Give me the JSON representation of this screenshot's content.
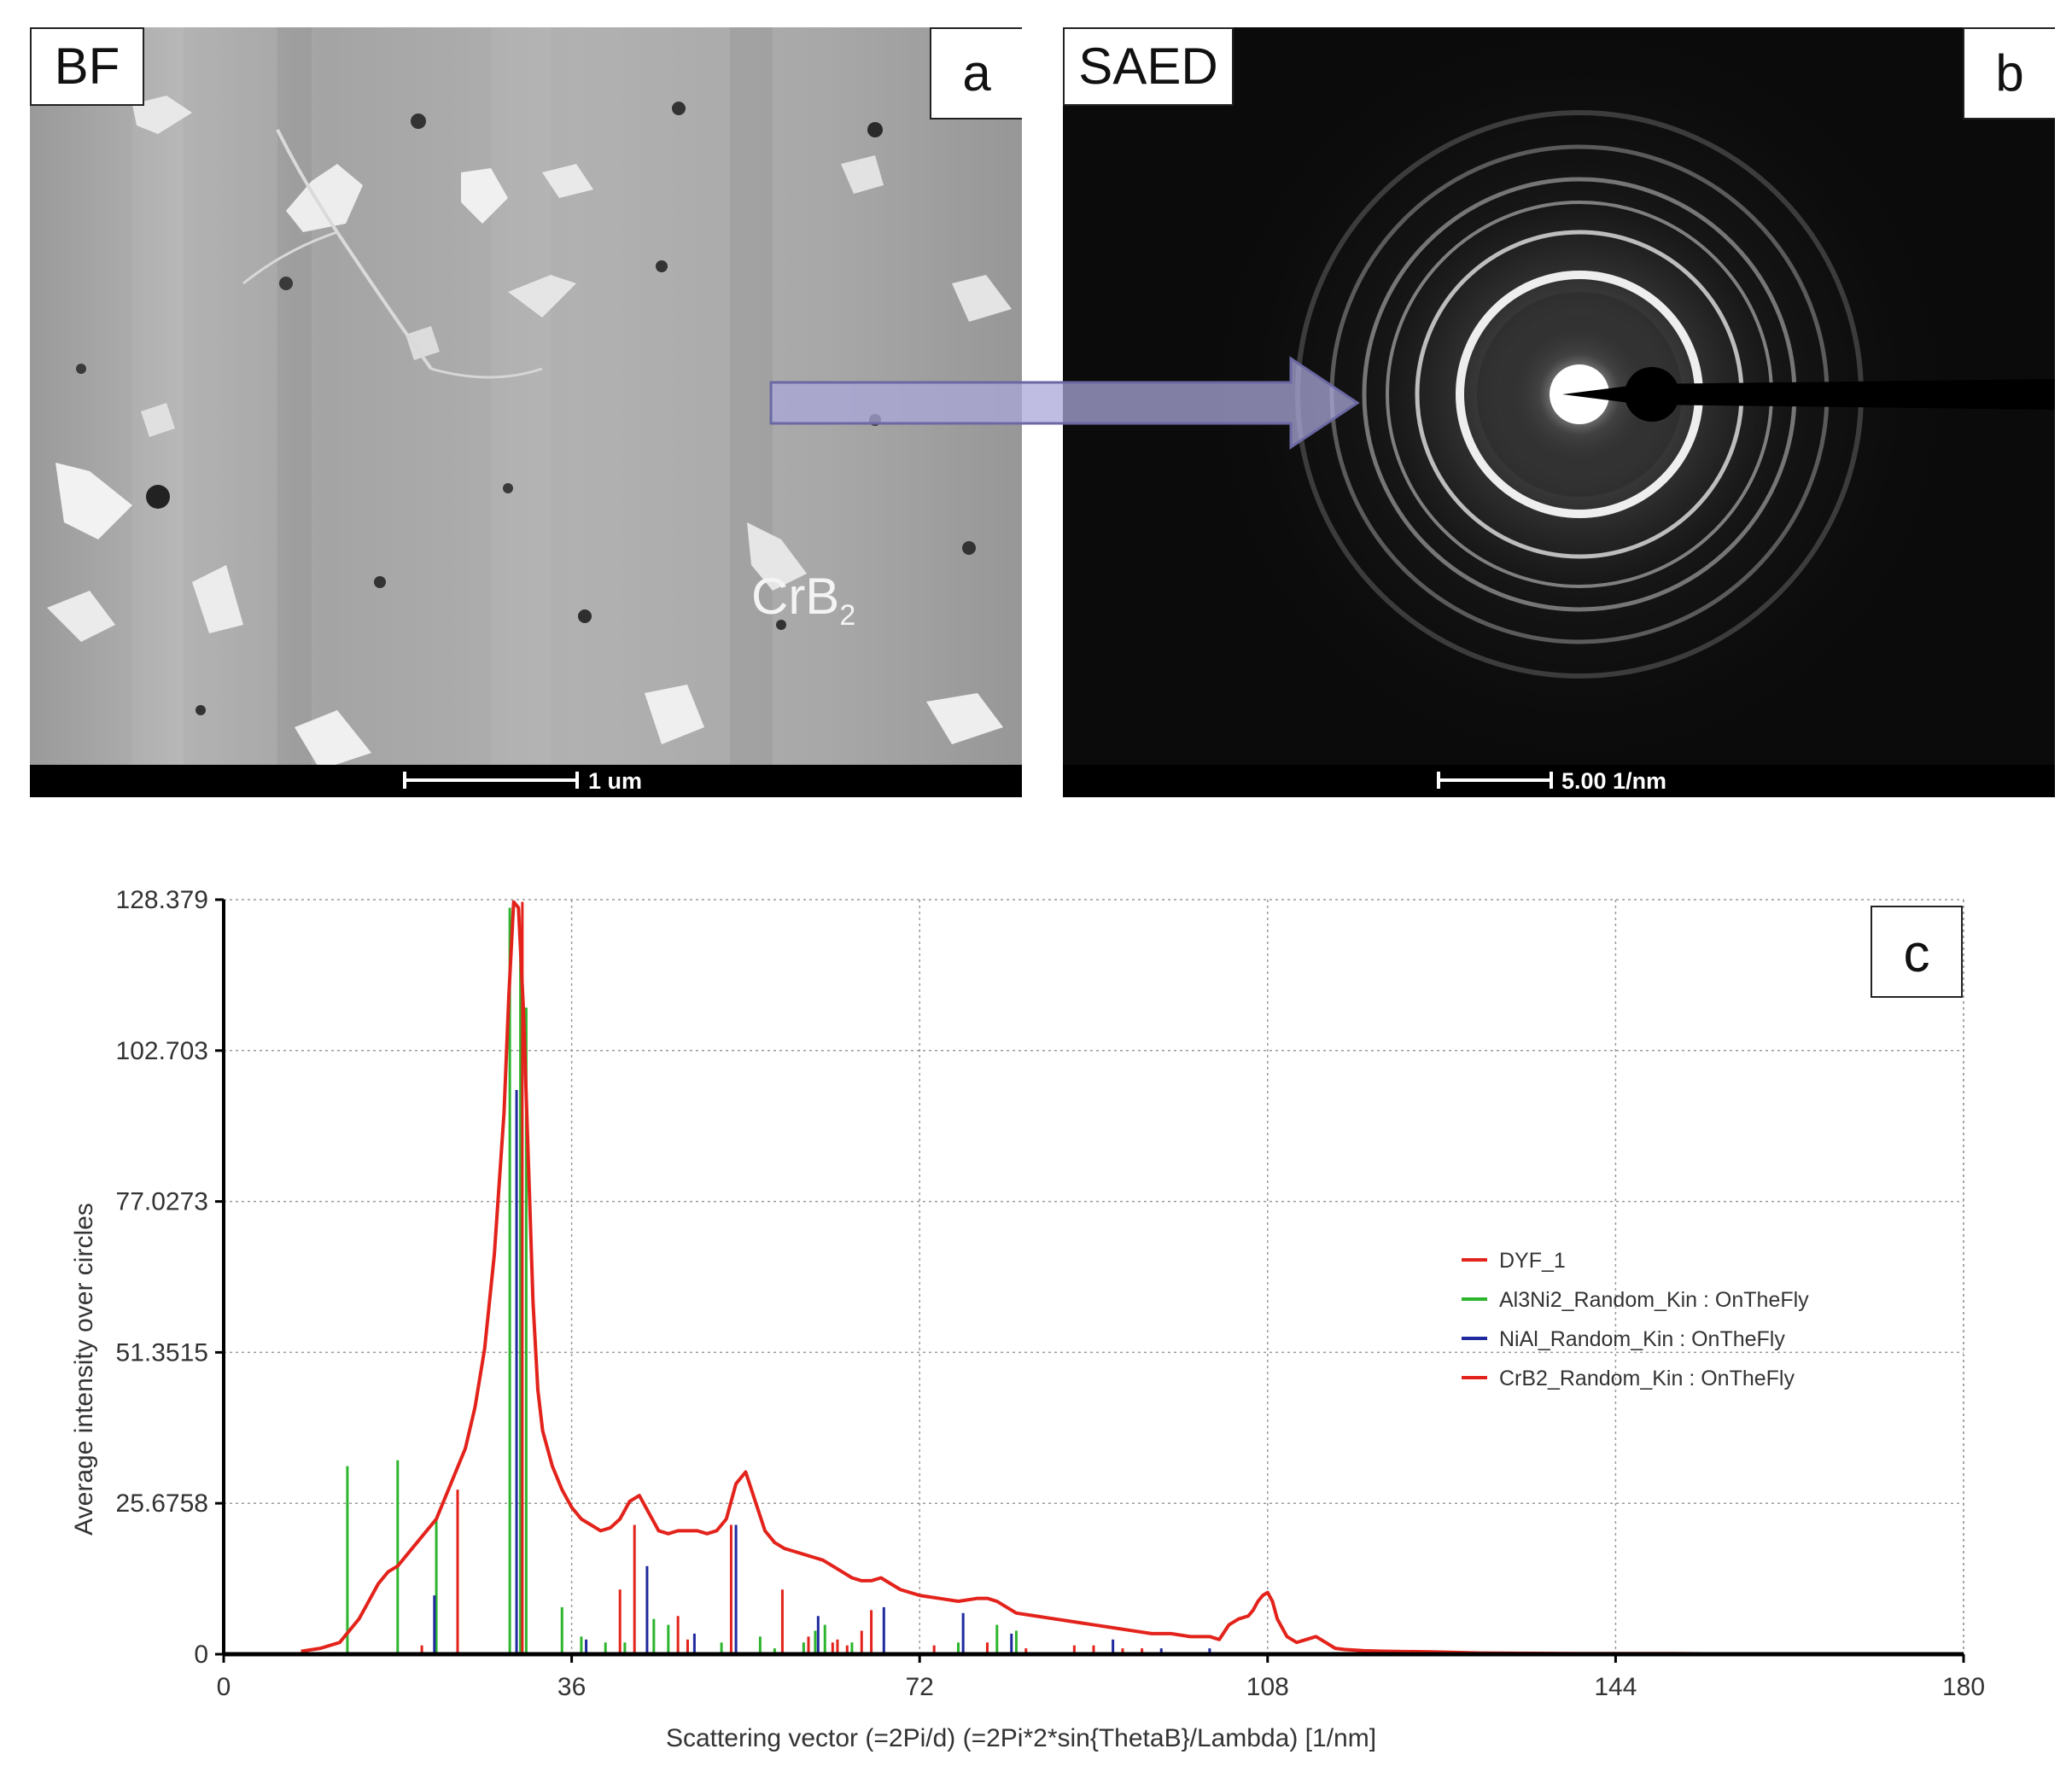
{
  "panel_a": {
    "mode_label": "BF",
    "panel_letter": "a",
    "particle_label_main": "CrB",
    "particle_label_sub": "2",
    "scale_text": "1 um"
  },
  "panel_b": {
    "mode_label": "SAED",
    "panel_letter": "b",
    "scale_text": "5.00 1/nm"
  },
  "panel_c": {
    "panel_letter": "c"
  },
  "chart_data": {
    "type": "line",
    "xlabel": "Scattering vector (=2Pi/d) (=2Pi*2*sin{ThetaB}/Lambda) [1/nm]",
    "ylabel": "Average intensity over circles",
    "xlim": [
      0,
      180
    ],
    "ylim": [
      0,
      128.379
    ],
    "x_ticks": [
      "0",
      "36",
      "72",
      "108",
      "144",
      "180"
    ],
    "y_ticks": [
      "0",
      "25.6758",
      "51.3515",
      "77.0273",
      "102.703",
      "128.379"
    ],
    "grid": true,
    "legend_position": "right",
    "colors": {
      "profile": "#e3231b",
      "al3ni2": "#2db52d",
      "nial": "#1f2a9e",
      "crb2": "#e3231b"
    },
    "series": [
      {
        "name": "DYF_1",
        "kind": "line",
        "x": [
          8,
          10,
          12,
          13,
          14,
          15,
          16,
          17,
          18,
          19,
          20,
          21,
          22,
          23,
          24,
          25,
          26,
          27,
          28,
          29,
          29.5,
          30,
          30.5,
          31,
          31.5,
          32,
          32.5,
          33,
          34,
          35,
          36,
          37,
          38,
          39,
          40,
          41,
          42,
          43,
          44,
          45,
          46,
          47,
          48,
          49,
          50,
          51,
          52,
          53,
          54,
          55,
          56,
          57,
          58,
          59,
          60,
          61,
          62,
          63,
          64,
          65,
          66,
          67,
          68,
          69,
          70,
          71,
          72,
          74,
          76,
          78,
          79,
          80,
          81,
          82,
          84,
          86,
          88,
          90,
          92,
          94,
          96,
          98,
          100,
          102,
          103,
          104,
          105,
          106,
          106.5,
          107,
          107.5,
          108,
          108.5,
          109,
          110,
          111,
          112,
          113,
          114,
          115,
          116,
          118,
          120,
          125,
          130,
          140,
          150,
          160,
          180
        ],
        "y": [
          0.5,
          1,
          2,
          4,
          6,
          9,
          12,
          14,
          15,
          17,
          19,
          21,
          23,
          27,
          31,
          35,
          42,
          52,
          68,
          92,
          112,
          128,
          127,
          110,
          85,
          60,
          45,
          38,
          32,
          28,
          25,
          23,
          22,
          21,
          21.5,
          23,
          26,
          27,
          24,
          21,
          20.5,
          21,
          21,
          21,
          20.5,
          21,
          23,
          29,
          31,
          26,
          21,
          19,
          18,
          17.5,
          17,
          16.5,
          16,
          15,
          14,
          13,
          12.5,
          12.5,
          13,
          12,
          11,
          10.5,
          10,
          9.5,
          9,
          9.5,
          9.5,
          9,
          8,
          7,
          6.5,
          6,
          5.5,
          5,
          4.5,
          4,
          3.5,
          3.5,
          3,
          3,
          2.5,
          5,
          6,
          6.5,
          7.5,
          9,
          10,
          10.5,
          9,
          6,
          3,
          2,
          2.5,
          3,
          2,
          1,
          0.8,
          0.6,
          0.5,
          0.4,
          0.2,
          0.1,
          0.1,
          0,
          0
        ]
      },
      {
        "name": "Al3Ni2_Random_Kin : OnTheFly",
        "kind": "sticks",
        "x": [
          12.8,
          18.0,
          22.0,
          29.6,
          30.7,
          31.3,
          35.0,
          37.0,
          39.5,
          41.5,
          44.5,
          46.0,
          51.5,
          55.5,
          57.0,
          60.0,
          61.2,
          62.2,
          65.0,
          76.0,
          80.0,
          82.0
        ],
        "y": [
          32,
          33,
          23,
          127,
          122,
          110,
          8,
          3,
          2,
          2,
          6,
          5,
          2,
          3,
          1,
          2,
          4,
          5,
          2,
          2,
          5,
          4
        ]
      },
      {
        "name": "NiAl_Random_Kin : OnTheFly",
        "kind": "sticks",
        "x": [
          21.8,
          30.3,
          37.5,
          43.8,
          48.7,
          53.0,
          61.5,
          68.3,
          76.5,
          81.5,
          92.0,
          97.0,
          102.0
        ],
        "y": [
          10,
          96,
          2.5,
          15,
          3.5,
          22,
          6.5,
          8,
          7,
          3.5,
          2.5,
          1,
          1
        ]
      },
      {
        "name": "CrB2_Random_Kin : OnTheFly",
        "kind": "sticks",
        "x": [
          20.5,
          24.2,
          30.9,
          41.0,
          42.5,
          47.0,
          48.0,
          52.5,
          57.8,
          60.5,
          63.0,
          63.5,
          64.5,
          66.0,
          67.0,
          73.5,
          79.0,
          83.0,
          88.0,
          90.0,
          93.0,
          95.0
        ],
        "y": [
          1.5,
          28,
          128,
          11,
          22,
          6.5,
          2.5,
          22,
          11,
          3,
          2,
          2.5,
          1.5,
          4,
          7.5,
          1.5,
          2,
          1,
          1.5,
          1.5,
          1,
          1
        ]
      }
    ]
  }
}
